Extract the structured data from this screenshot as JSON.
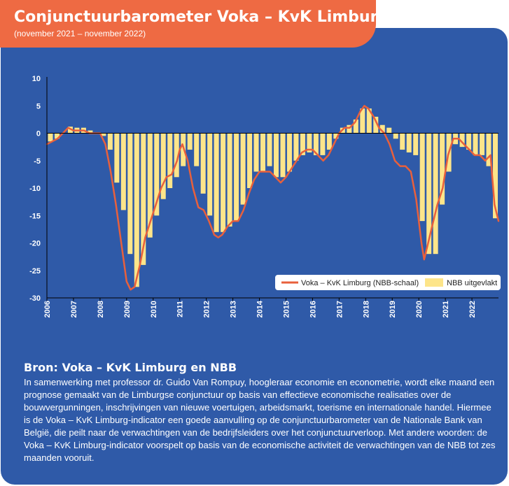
{
  "header": {
    "title": "Conjunctuurbarometer Voka – KvK Limburg en NBB",
    "subtitle": "(november 2021 – november 2022)"
  },
  "source": {
    "heading": "Bron: Voka – KvK Limburg en NBB",
    "text": "In samenwerking met professor dr. Guido Van Rompuy, hoogleraar economie en econometrie, wordt elke maand een prognose gemaakt van de Limburgse conjunctuur op basis van effectieve economische realisaties over de bouwvergunningen, inschrijvingen van nieuwe voertuigen, arbeidsmarkt, toerisme en internationale handel. Hiermee is de Voka – KvK Limburg-indicator een goede aanvulling op de conjunctuurbarometer van de Nationale Bank van België, die peilt naar de verwachtingen van de bedrijfsleiders over het conjunctuurverloop. Met andere woorden: de Voka – KvK Limburg-indicator voorspelt op basis van de economische activiteit de verwachtingen van de NBB tot zes maanden vooruit."
  },
  "colors": {
    "line": "#e8603c",
    "bars": "#fde58a",
    "panel": "#2f5aa8",
    "banner": "#ee6a43"
  },
  "chart_data": {
    "type": "bar+line",
    "ylim": [
      -30,
      10
    ],
    "yticks": [
      "10",
      "5",
      "0",
      "-5",
      "-10",
      "-15",
      "-20",
      "-25",
      "-30"
    ],
    "xlim": [
      2006,
      2023
    ],
    "xticks": [
      "2006",
      "2007",
      "2008",
      "2009",
      "2010",
      "2011",
      "2012",
      "2013",
      "2014",
      "2015",
      "2016",
      "2017",
      "2018",
      "2019",
      "2020",
      "2021",
      "2022"
    ],
    "legend": {
      "position": "bottom-right",
      "line_label": "Voka – KvK Limburg (NBB-schaal)",
      "bar_label": "NBB uitgevlakt"
    },
    "series": [
      {
        "name": "NBB uitgevlakt",
        "type": "bar",
        "x": [
          2006.0,
          2006.25,
          2006.5,
          2006.75,
          2007.0,
          2007.25,
          2007.5,
          2007.75,
          2008.0,
          2008.25,
          2008.5,
          2008.75,
          2009.0,
          2009.25,
          2009.5,
          2009.75,
          2010.0,
          2010.25,
          2010.5,
          2010.75,
          2011.0,
          2011.25,
          2011.5,
          2011.75,
          2012.0,
          2012.25,
          2012.5,
          2012.75,
          2013.0,
          2013.25,
          2013.5,
          2013.75,
          2014.0,
          2014.25,
          2014.5,
          2014.75,
          2015.0,
          2015.25,
          2015.5,
          2015.75,
          2016.0,
          2016.25,
          2016.5,
          2016.75,
          2017.0,
          2017.25,
          2017.5,
          2017.75,
          2018.0,
          2018.25,
          2018.5,
          2018.75,
          2019.0,
          2019.25,
          2019.5,
          2019.75,
          2020.0,
          2020.25,
          2020.5,
          2020.75,
          2021.0,
          2021.25,
          2021.5,
          2021.75,
          2022.0,
          2022.25,
          2022.5,
          2022.75
        ],
        "values": [
          -1.5,
          -1,
          0,
          1.2,
          1,
          1,
          0.5,
          0,
          -0.5,
          -3,
          -9,
          -14,
          -22,
          -28,
          -24,
          -19,
          -15,
          -12,
          -10,
          -8,
          -6,
          -3,
          -6,
          -11,
          -15,
          -18,
          -18,
          -17,
          -16,
          -13,
          -10,
          -7,
          -7,
          -6,
          -8,
          -8,
          -7,
          -5,
          -4,
          -3.5,
          -4,
          -4,
          -3,
          -1,
          1,
          1.5,
          2.5,
          4.5,
          4.5,
          3,
          1.5,
          1,
          -1,
          -3,
          -3.5,
          -4,
          -16,
          -22,
          -22,
          -13,
          -7,
          -2,
          -2.5,
          -3,
          -4,
          -4,
          -6,
          -15.5
        ]
      },
      {
        "name": "Voka – KvK Limburg (NBB-schaal)",
        "type": "line",
        "x": [
          2006.0,
          2006.2,
          2006.4,
          2006.6,
          2006.8,
          2007.0,
          2007.2,
          2007.4,
          2007.6,
          2007.8,
          2008.0,
          2008.2,
          2008.4,
          2008.6,
          2008.8,
          2009.0,
          2009.15,
          2009.3,
          2009.5,
          2009.7,
          2009.9,
          2010.1,
          2010.3,
          2010.5,
          2010.7,
          2010.9,
          2011.0,
          2011.1,
          2011.3,
          2011.5,
          2011.7,
          2011.9,
          2012.1,
          2012.3,
          2012.45,
          2012.6,
          2012.8,
          2013.0,
          2013.2,
          2013.4,
          2013.6,
          2013.8,
          2014.0,
          2014.2,
          2014.4,
          2014.6,
          2014.8,
          2015.0,
          2015.2,
          2015.4,
          2015.6,
          2015.8,
          2016.0,
          2016.2,
          2016.4,
          2016.6,
          2016.8,
          2017.0,
          2017.2,
          2017.4,
          2017.6,
          2017.8,
          2017.95,
          2018.1,
          2018.3,
          2018.5,
          2018.7,
          2018.9,
          2019.1,
          2019.3,
          2019.5,
          2019.7,
          2019.9,
          2020.1,
          2020.2,
          2020.3,
          2020.5,
          2020.7,
          2020.9,
          2021.0,
          2021.1,
          2021.3,
          2021.5,
          2021.7,
          2021.9,
          2022.1,
          2022.3,
          2022.5,
          2022.7,
          2022.85,
          2023.0
        ],
        "values": [
          -2,
          -1.5,
          -1,
          0,
          1,
          0.5,
          0.5,
          0.5,
          0,
          0,
          0,
          -2,
          -7,
          -13,
          -20,
          -27,
          -28.5,
          -28,
          -24,
          -19,
          -16,
          -13,
          -10,
          -8,
          -7.5,
          -5,
          -3,
          -2,
          -5,
          -10,
          -13.5,
          -14,
          -16,
          -18.5,
          -19,
          -18.5,
          -17,
          -16,
          -16,
          -14,
          -11,
          -8.5,
          -7,
          -7,
          -7,
          -8,
          -9,
          -8,
          -6.5,
          -5,
          -3.5,
          -3,
          -3,
          -4,
          -5,
          -4,
          -2,
          0,
          1,
          1,
          2,
          4,
          5,
          4.5,
          3,
          1,
          0,
          -2,
          -5,
          -6,
          -6,
          -7,
          -12,
          -20,
          -23,
          -21,
          -17,
          -13,
          -10,
          -7,
          -4,
          -1,
          -1,
          -2,
          -3,
          -4,
          -4,
          -5,
          -4,
          -13,
          -16
        ]
      }
    ]
  }
}
